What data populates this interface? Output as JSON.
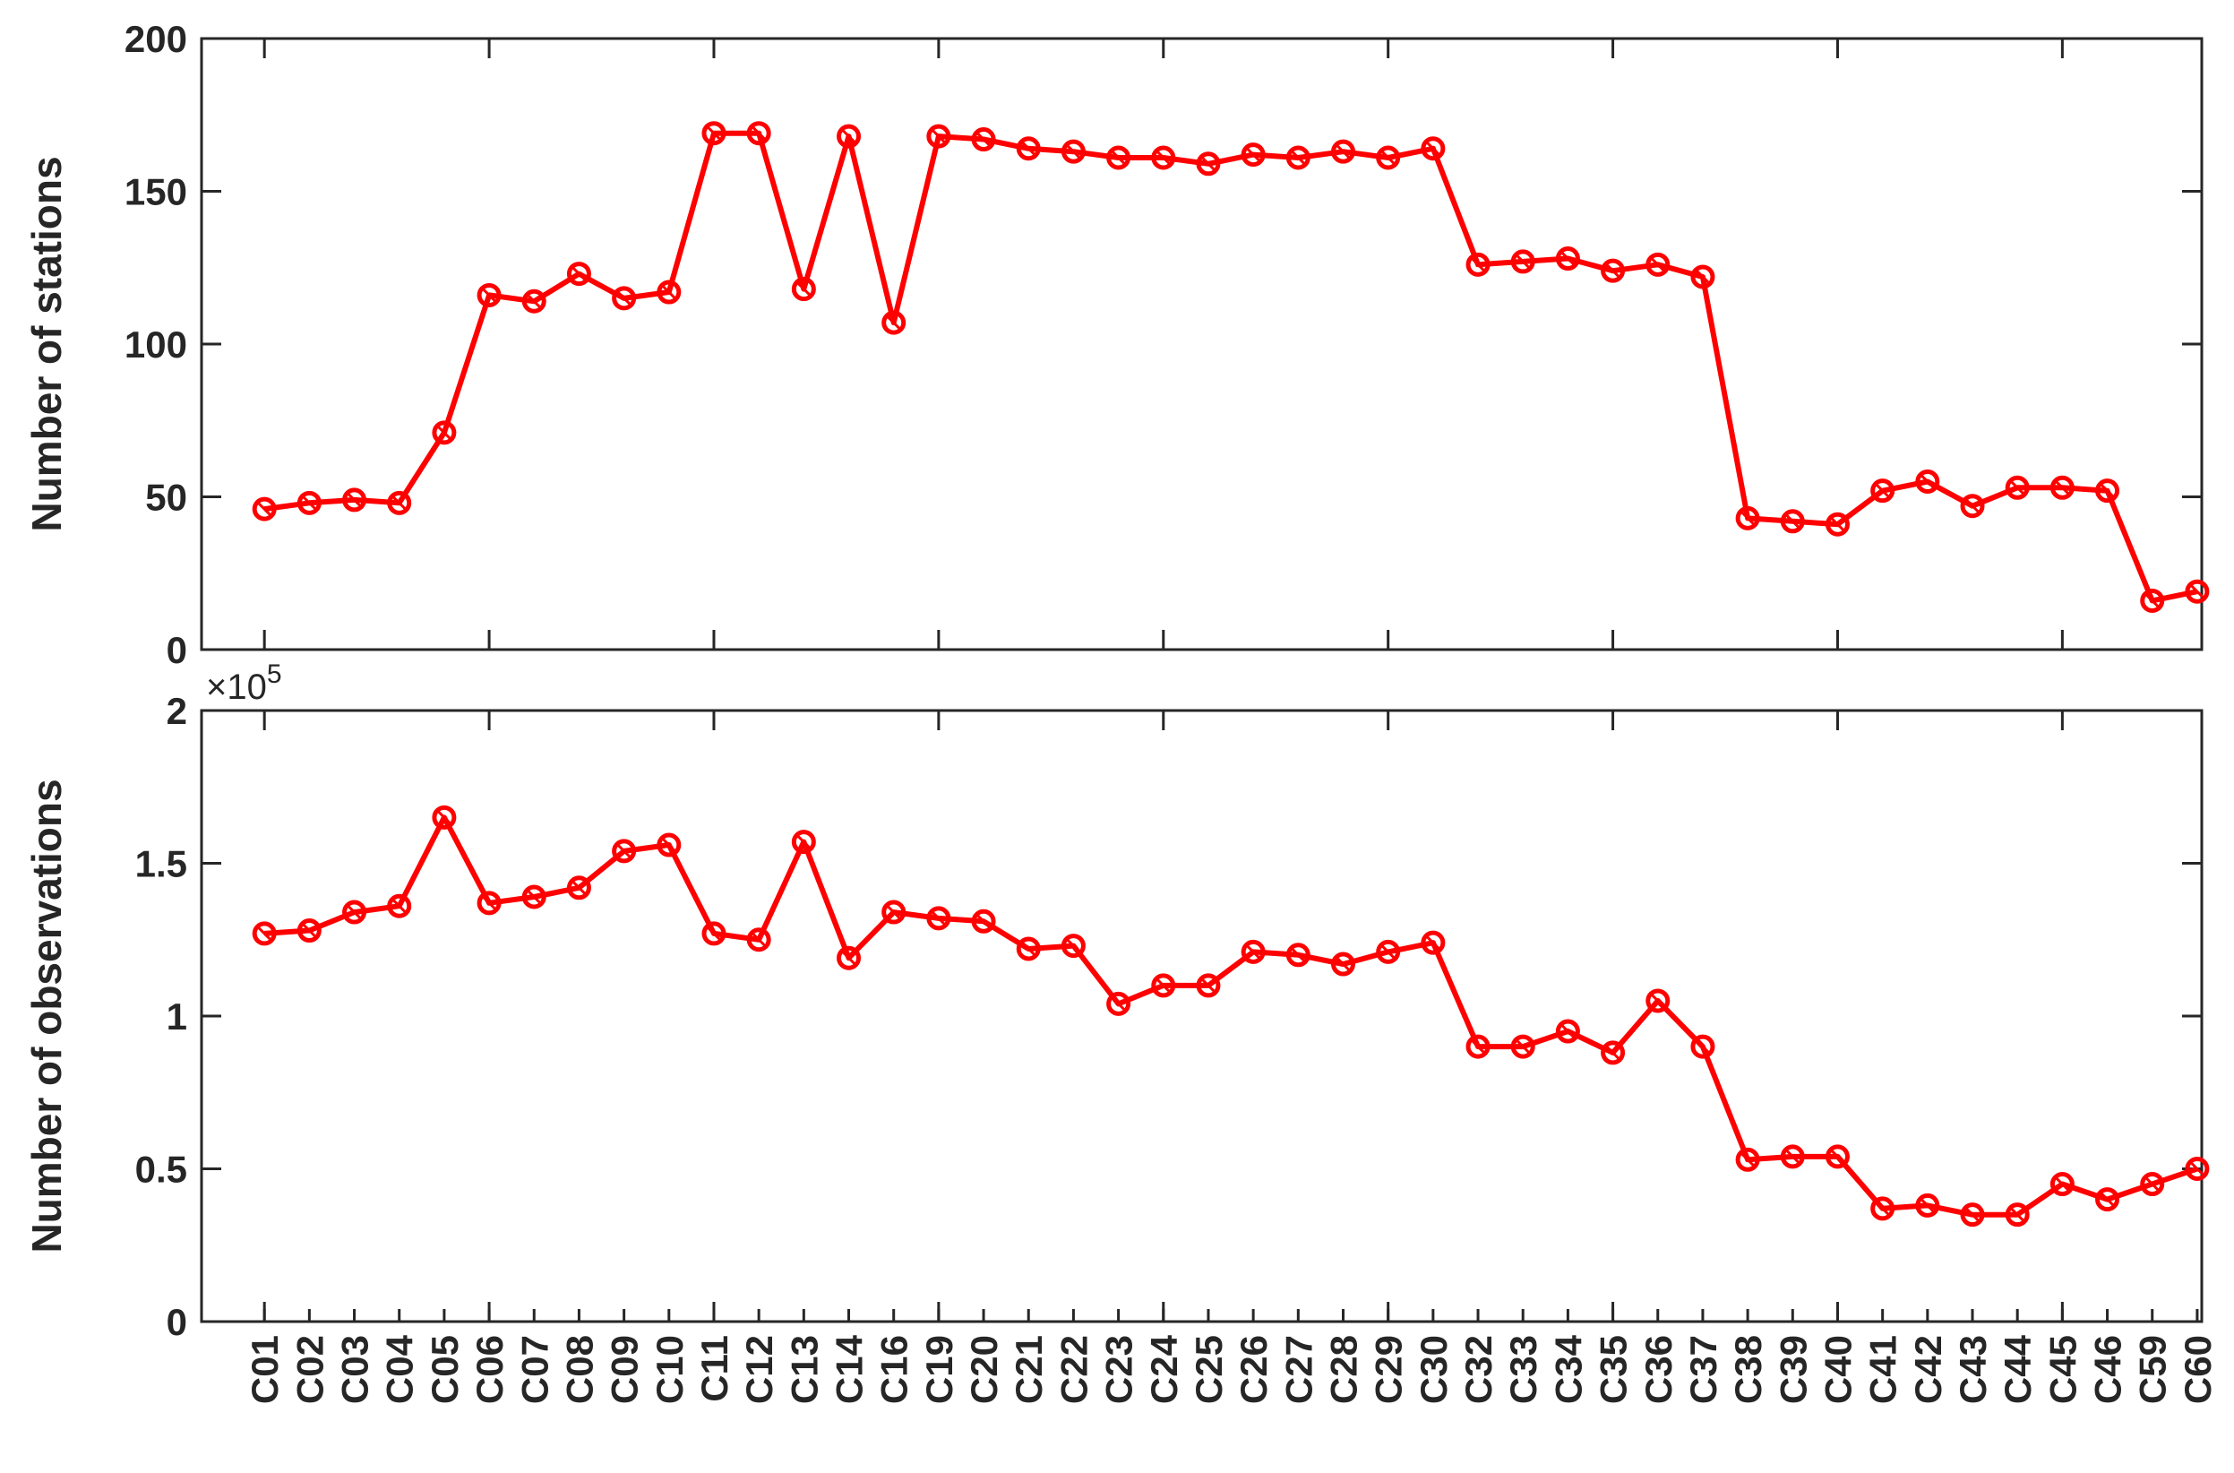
{
  "chart_data": [
    {
      "type": "line",
      "ylabel": "Number of stations",
      "ylim": [
        0,
        200
      ],
      "yticks": [
        "0",
        "50",
        "100",
        "150",
        "200"
      ],
      "grid": false,
      "color": "#ff0000",
      "categories": [
        "C01",
        "C02",
        "C03",
        "C04",
        "C05",
        "C06",
        "C07",
        "C08",
        "C09",
        "C10",
        "C11",
        "C12",
        "C13",
        "C14",
        "C16",
        "C19",
        "C20",
        "C21",
        "C22",
        "C23",
        "C24",
        "C25",
        "C26",
        "C27",
        "C28",
        "C29",
        "C30",
        "C32",
        "C33",
        "C34",
        "C35",
        "C36",
        "C37",
        "C38",
        "C39",
        "C40",
        "C41",
        "C42",
        "C43",
        "C44",
        "C45",
        "C46",
        "C59",
        "C60"
      ],
      "series": [
        {
          "values": [
            46,
            48,
            49,
            48,
            71,
            116,
            114,
            123,
            115,
            117,
            169,
            169,
            118,
            168,
            107,
            168,
            167,
            164,
            163,
            161,
            161,
            159,
            162,
            161,
            163,
            161,
            164,
            126,
            127,
            128,
            124,
            126,
            122,
            43,
            42,
            41,
            52,
            55,
            47,
            53,
            53,
            52,
            16,
            19
          ]
        }
      ]
    },
    {
      "type": "line",
      "ylabel": "Number of observations",
      "exponent_label": "×10",
      "exponent_power": "5",
      "ylim": [
        0,
        2
      ],
      "yticks": [
        "0",
        "0.5",
        "1",
        "1.5",
        "2"
      ],
      "grid": false,
      "color": "#ff0000",
      "categories": [
        "C01",
        "C02",
        "C03",
        "C04",
        "C05",
        "C06",
        "C07",
        "C08",
        "C09",
        "C10",
        "C11",
        "C12",
        "C13",
        "C14",
        "C16",
        "C19",
        "C20",
        "C21",
        "C22",
        "C23",
        "C24",
        "C25",
        "C26",
        "C27",
        "C28",
        "C29",
        "C30",
        "C32",
        "C33",
        "C34",
        "C35",
        "C36",
        "C37",
        "C38",
        "C39",
        "C40",
        "C41",
        "C42",
        "C43",
        "C44",
        "C45",
        "C46",
        "C59",
        "C60"
      ],
      "series": [
        {
          "values": [
            1.27,
            1.28,
            1.34,
            1.36,
            1.65,
            1.37,
            1.39,
            1.42,
            1.54,
            1.56,
            1.27,
            1.25,
            1.57,
            1.19,
            1.34,
            1.32,
            1.31,
            1.22,
            1.23,
            1.04,
            1.1,
            1.1,
            1.21,
            1.2,
            1.17,
            1.21,
            1.24,
            0.9,
            0.9,
            0.95,
            0.88,
            1.05,
            0.9,
            0.53,
            0.54,
            0.54,
            0.37,
            0.38,
            0.35,
            0.35,
            0.45,
            0.4,
            0.45,
            0.5
          ]
        }
      ]
    }
  ]
}
